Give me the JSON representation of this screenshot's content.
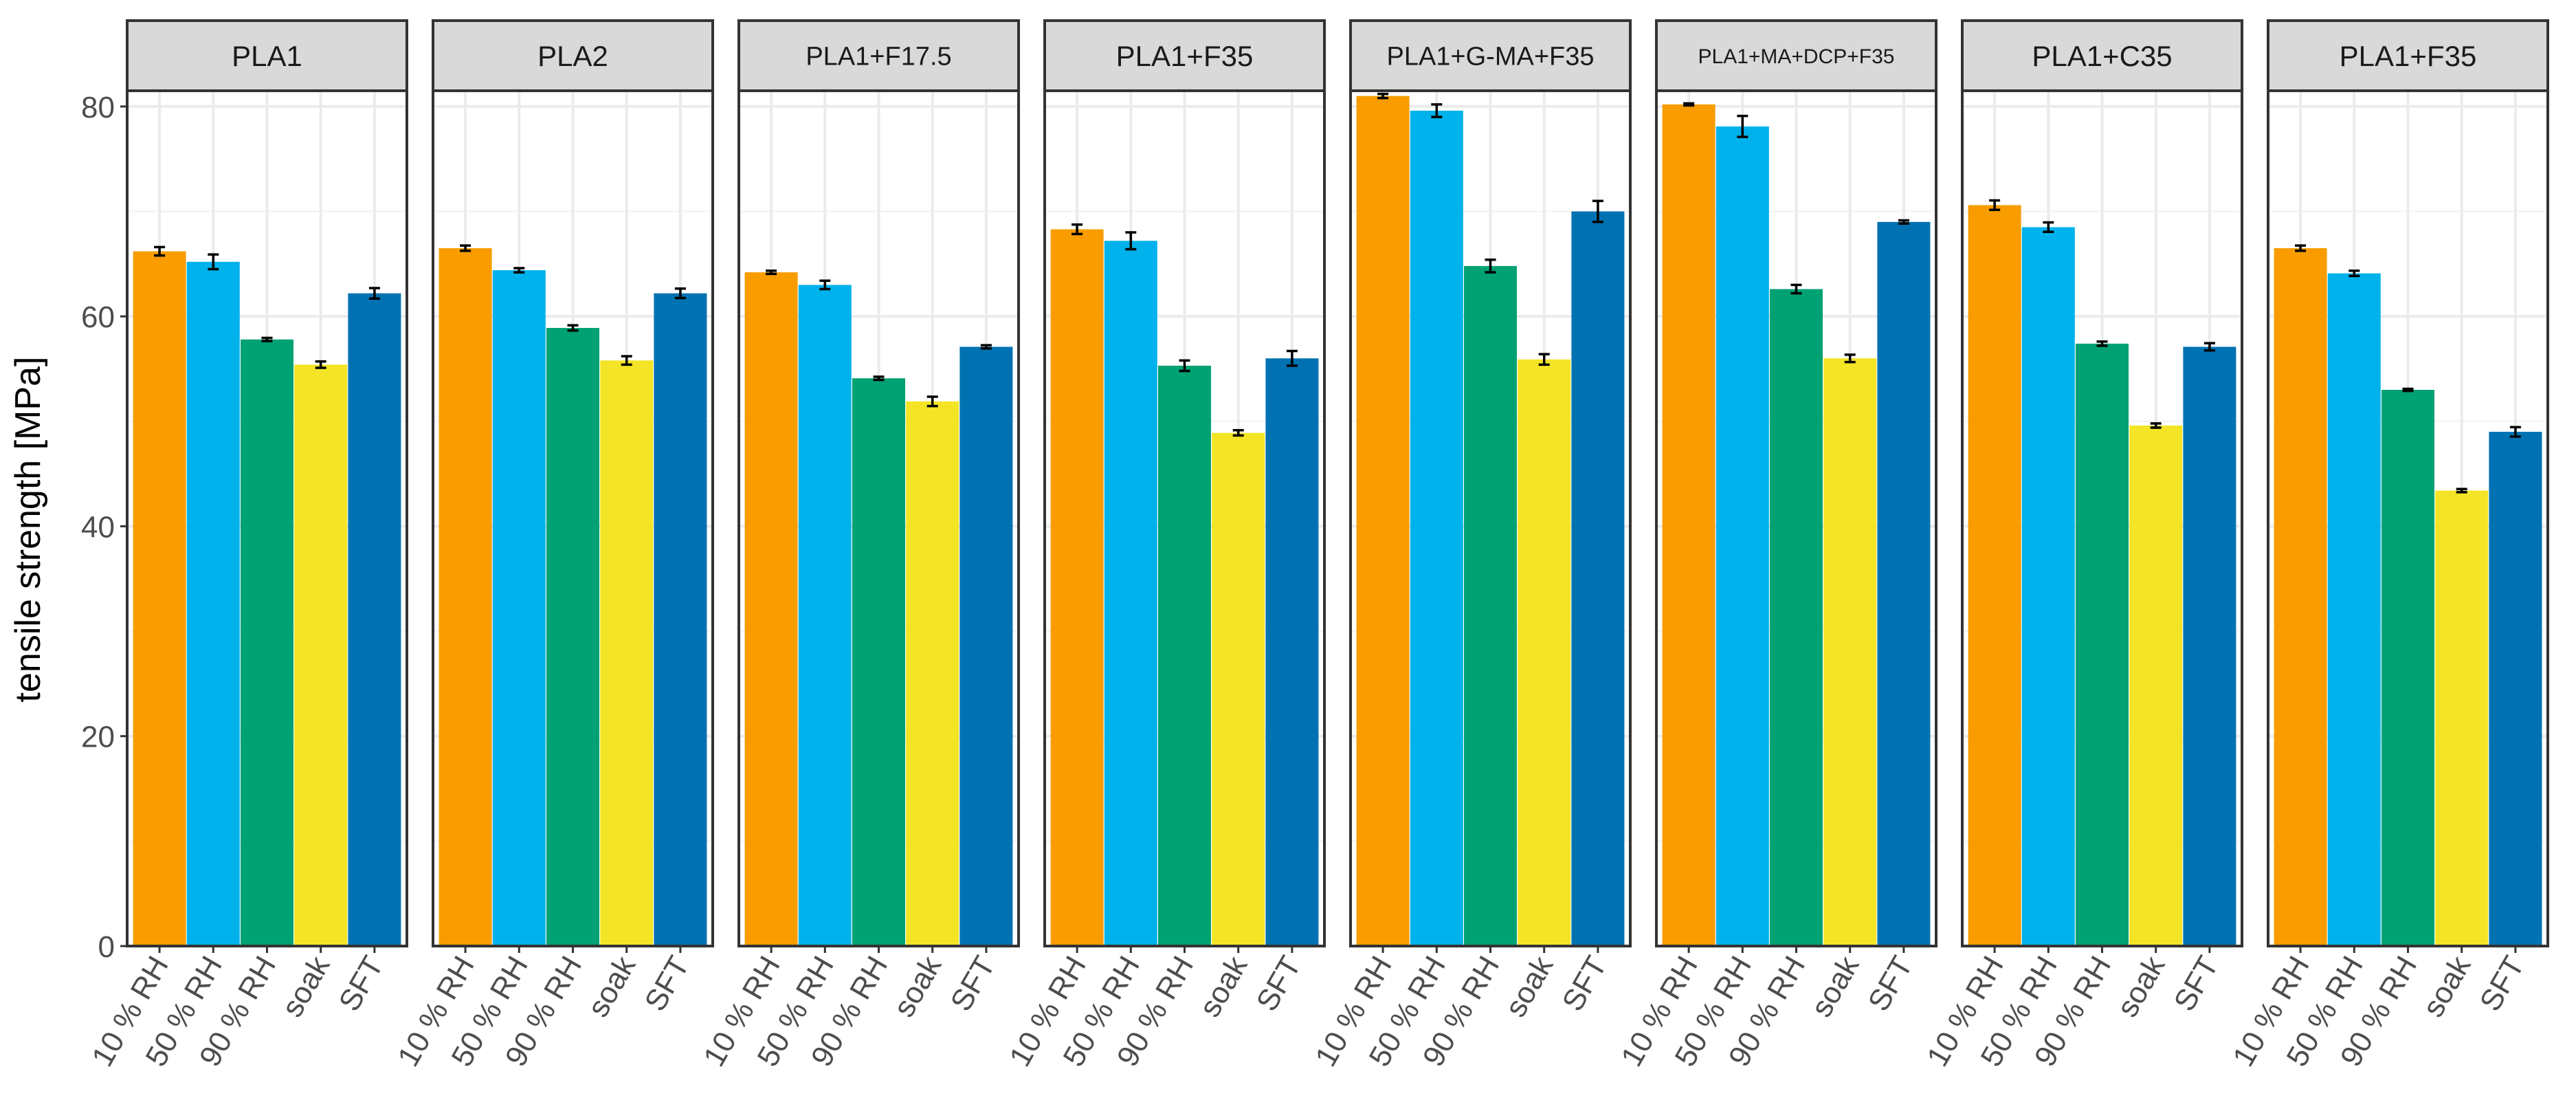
{
  "chart_data": {
    "type": "bar",
    "title": "",
    "ylabel": "tensile strength [MPa]",
    "xlabel": "",
    "ylim": [
      0,
      81.5
    ],
    "y_ticks": [
      "0",
      "20",
      "40",
      "60",
      "80"
    ],
    "grid": true,
    "legend": "none",
    "categories": [
      "10 % RH",
      "50 % RH",
      "90 % RH",
      "soak",
      "SFT"
    ],
    "category_colors": [
      "#F89C00",
      "#00B2EB",
      "#00A172",
      "#F3E526",
      "#0072B2"
    ],
    "panels": [
      {
        "label": "PLA1",
        "values": [
          66.2,
          65.2,
          57.8,
          55.4,
          62.2
        ],
        "errors": [
          0.4,
          0.7,
          0.15,
          0.3,
          0.5
        ]
      },
      {
        "label": "PLA2",
        "values": [
          66.5,
          64.4,
          58.9,
          55.8,
          62.2
        ],
        "errors": [
          0.25,
          0.2,
          0.25,
          0.4,
          0.45
        ]
      },
      {
        "label": "PLA1+F17.5",
        "values": [
          64.2,
          63.0,
          54.1,
          51.9,
          57.1
        ],
        "errors": [
          0.15,
          0.4,
          0.15,
          0.45,
          0.15
        ]
      },
      {
        "label": "PLA1+F35",
        "values": [
          68.3,
          67.2,
          55.3,
          48.9,
          56.0
        ],
        "errors": [
          0.45,
          0.8,
          0.5,
          0.25,
          0.7
        ]
      },
      {
        "label": "PLA1+G-MA+F35",
        "values": [
          81.0,
          79.6,
          64.8,
          55.9,
          70.0
        ],
        "errors": [
          0.2,
          0.6,
          0.6,
          0.5,
          1.0
        ]
      },
      {
        "label": "PLA1+MA+DCP+F35",
        "values": [
          80.2,
          78.1,
          62.6,
          56.0,
          69.0
        ],
        "errors": [
          0.1,
          1.0,
          0.4,
          0.35,
          0.15
        ]
      },
      {
        "label": "PLA1+C35",
        "values": [
          70.6,
          68.5,
          57.4,
          49.6,
          57.1
        ],
        "errors": [
          0.45,
          0.45,
          0.2,
          0.2,
          0.35
        ]
      },
      {
        "label": "PLA1+F35",
        "values": [
          66.5,
          64.1,
          53.0,
          43.4,
          49.0
        ],
        "errors": [
          0.25,
          0.25,
          0.1,
          0.15,
          0.45
        ]
      }
    ]
  }
}
